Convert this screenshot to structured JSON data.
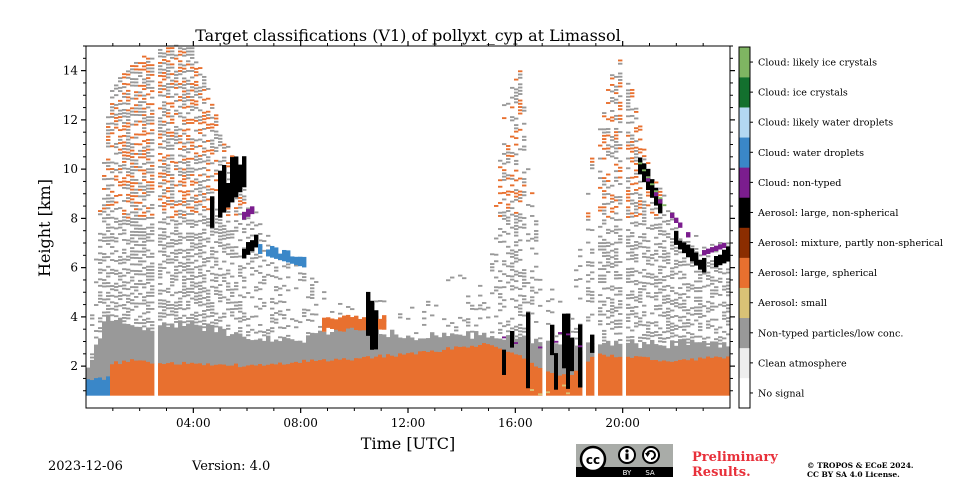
{
  "chart_data": {
    "type": "heatmap",
    "title": "Target classifications (V1) of pollyxt_cyp at Limassol",
    "xlabel": "Time [UTC]",
    "ylabel": "Height [km]",
    "xlim": [
      0,
      24
    ],
    "ylim": [
      0.3,
      15
    ],
    "x_ticks": [
      {
        "value": 4,
        "label": "04:00"
      },
      {
        "value": 8,
        "label": "08:00"
      },
      {
        "value": 12,
        "label": "12:00"
      },
      {
        "value": 16,
        "label": "16:00"
      },
      {
        "value": 20,
        "label": "20:00"
      }
    ],
    "y_ticks": [
      {
        "value": 2,
        "label": "2"
      },
      {
        "value": 4,
        "label": "4"
      },
      {
        "value": 6,
        "label": "6"
      },
      {
        "value": 8,
        "label": "8"
      },
      {
        "value": 10,
        "label": "10"
      },
      {
        "value": 12,
        "label": "12"
      },
      {
        "value": 14,
        "label": "14"
      }
    ],
    "classes": [
      {
        "label": "No signal",
        "color": "#ffffff"
      },
      {
        "label": "Clean atmosphere",
        "color": "#eeeeee"
      },
      {
        "label": "Non-typed particles/low conc.",
        "color": "#999999"
      },
      {
        "label": "Aerosol: small",
        "color": "#d9c276"
      },
      {
        "label": "Aerosol: large, spherical",
        "color": "#e8702f"
      },
      {
        "label": "Aerosol: mixture, partly non-spherical",
        "color": "#8b2d00"
      },
      {
        "label": "Aerosol: large, non-spherical",
        "color": "#000000"
      },
      {
        "label": "Cloud: non-typed",
        "color": "#7b1d8e"
      },
      {
        "label": "Cloud: water droplets",
        "color": "#3a87c8"
      },
      {
        "label": "Cloud: likely water droplets",
        "color": "#b3d8f2"
      },
      {
        "label": "Cloud: ice crystals",
        "color": "#13702e"
      },
      {
        "label": "Cloud: likely ice crystals",
        "color": "#7fb562"
      }
    ]
  },
  "footer": {
    "date": "2023-12-06",
    "version": "Version: 4.0",
    "preliminary_line1": "Preliminary",
    "preliminary_line2": "Results.",
    "copyright_line1": "© TROPOS & ECoE 2024.",
    "copyright_line2": "CC BY SA 4.0 License.",
    "license_badge": {
      "cc": "cc",
      "by": "BY",
      "sa": "SA"
    }
  },
  "colors": {
    "preliminary": "#e8303a",
    "badge_bg": "#a9aca8",
    "badge_bar": "#000000"
  }
}
